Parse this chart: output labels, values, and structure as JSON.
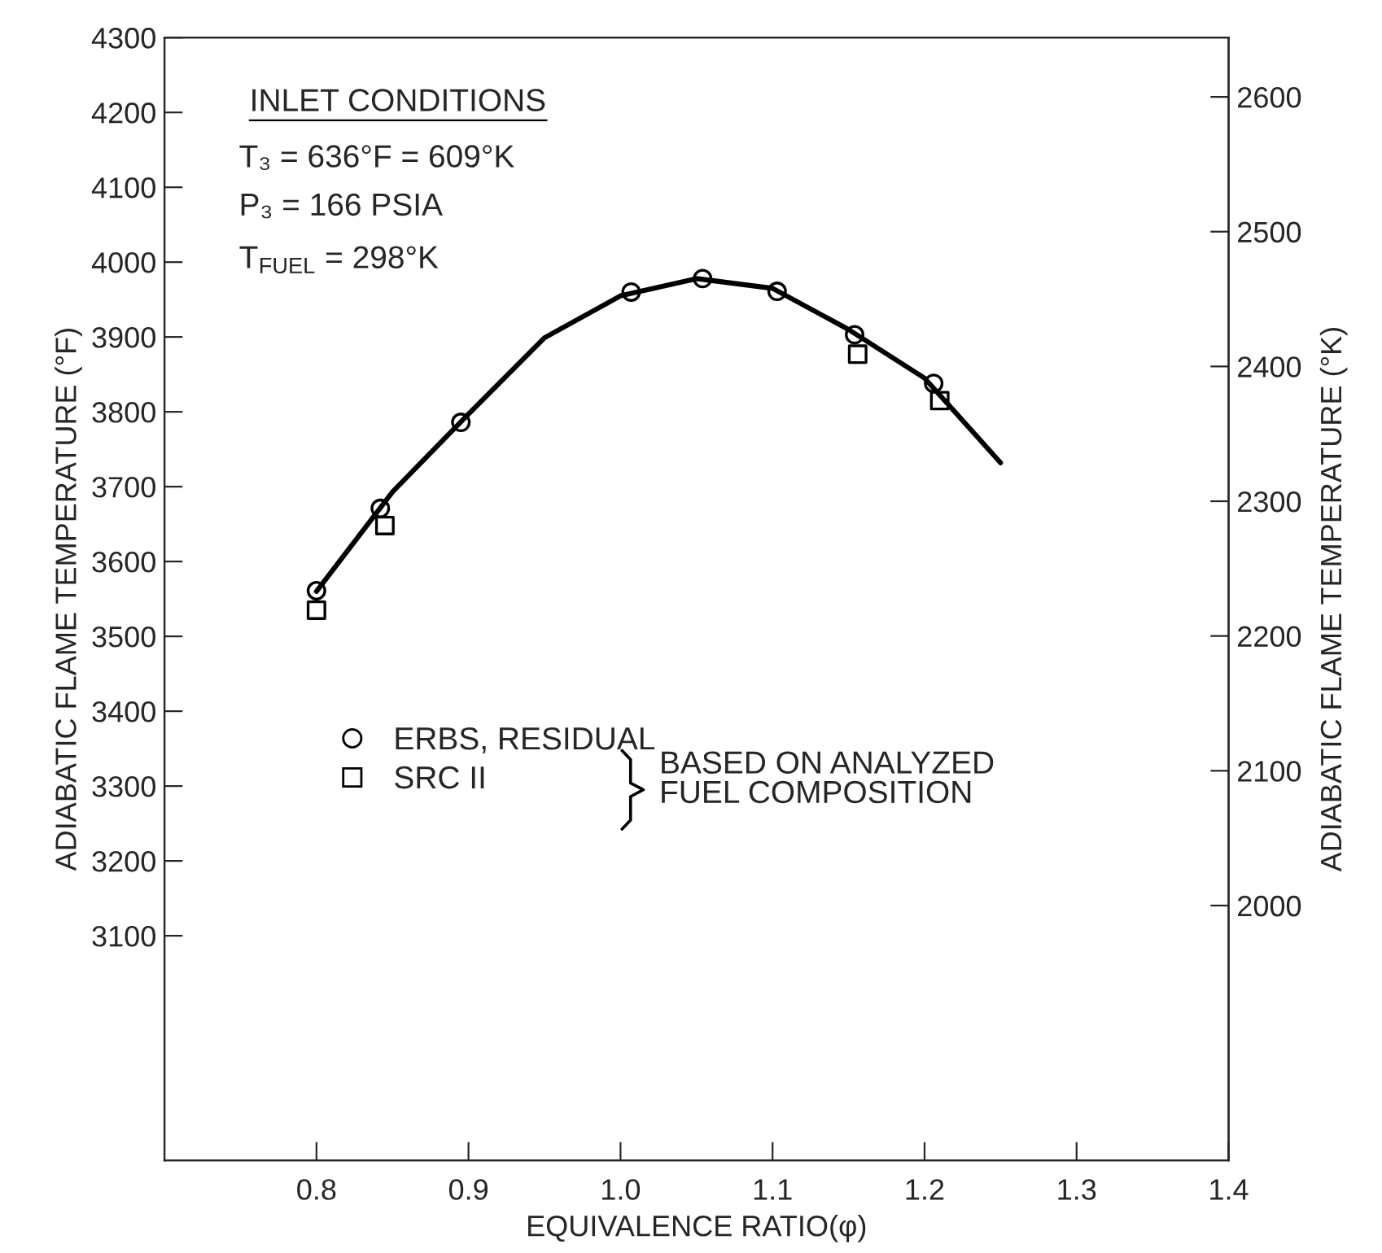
{
  "chart_data": {
    "type": "scatter",
    "xlabel": "EQUIVALENCE RATIO(φ)",
    "ylabel": "ADIABATIC FLAME TEMPERATURE (°F)",
    "y2label": "ADIABATIC FLAME TEMPERATURE (°K)",
    "xlim": [
      0.7,
      1.4
    ],
    "xticks": [
      {
        "value": 0.8,
        "label": "0.8"
      },
      {
        "value": 0.9,
        "label": "0.9"
      },
      {
        "value": 1.0,
        "label": "1.0"
      },
      {
        "value": 1.1,
        "label": "1.1"
      },
      {
        "value": 1.2,
        "label": "1.2"
      },
      {
        "value": 1.3,
        "label": "1.3"
      },
      {
        "value": 1.4,
        "label": "1.4"
      }
    ],
    "ylim": [
      2800,
      4300
    ],
    "yticks": [
      3100,
      3200,
      3300,
      3400,
      3500,
      3600,
      3700,
      3800,
      3900,
      4000,
      4100,
      4200,
      4300
    ],
    "y2lim": [
      1811,
      2644
    ],
    "y2ticks": [
      2000,
      2100,
      2200,
      2300,
      2400,
      2500,
      2600
    ],
    "series": [
      {
        "name": "ERBS, RESIDUAL",
        "marker": "circle",
        "color": "#000000",
        "x": [
          0.8,
          0.842,
          0.895,
          1.007,
          1.054,
          1.103,
          1.154,
          1.206
        ],
        "values": [
          3561,
          3671,
          3786,
          3960,
          3978,
          3961,
          3903,
          3838
        ]
      },
      {
        "name": "SRC II",
        "marker": "square",
        "color": "#000000",
        "x": [
          0.8,
          0.845,
          1.156,
          1.21
        ],
        "values": [
          3535,
          3648,
          3877,
          3815
        ]
      },
      {
        "type": "line",
        "marker": "none",
        "line_style": "solid",
        "color": "#000000",
        "x": [
          0.8,
          0.85,
          0.9,
          0.95,
          1.0,
          1.05,
          1.1,
          1.15,
          1.2,
          1.25
        ],
        "values": [
          3560,
          3693,
          3797,
          3899,
          3955,
          3978,
          3965,
          3910,
          3845,
          3732
        ]
      }
    ],
    "annotations": [
      "INLET CONDITIONS",
      "T₃ = 636°F = 609°K",
      "P₃ = 166 PSIA",
      "T$_{FUEL}$ = 298°K",
      "BASED ON ANALYZED\nFUEL COMPOSITION"
    ],
    "legend": "bottom left",
    "grid": false
  }
}
